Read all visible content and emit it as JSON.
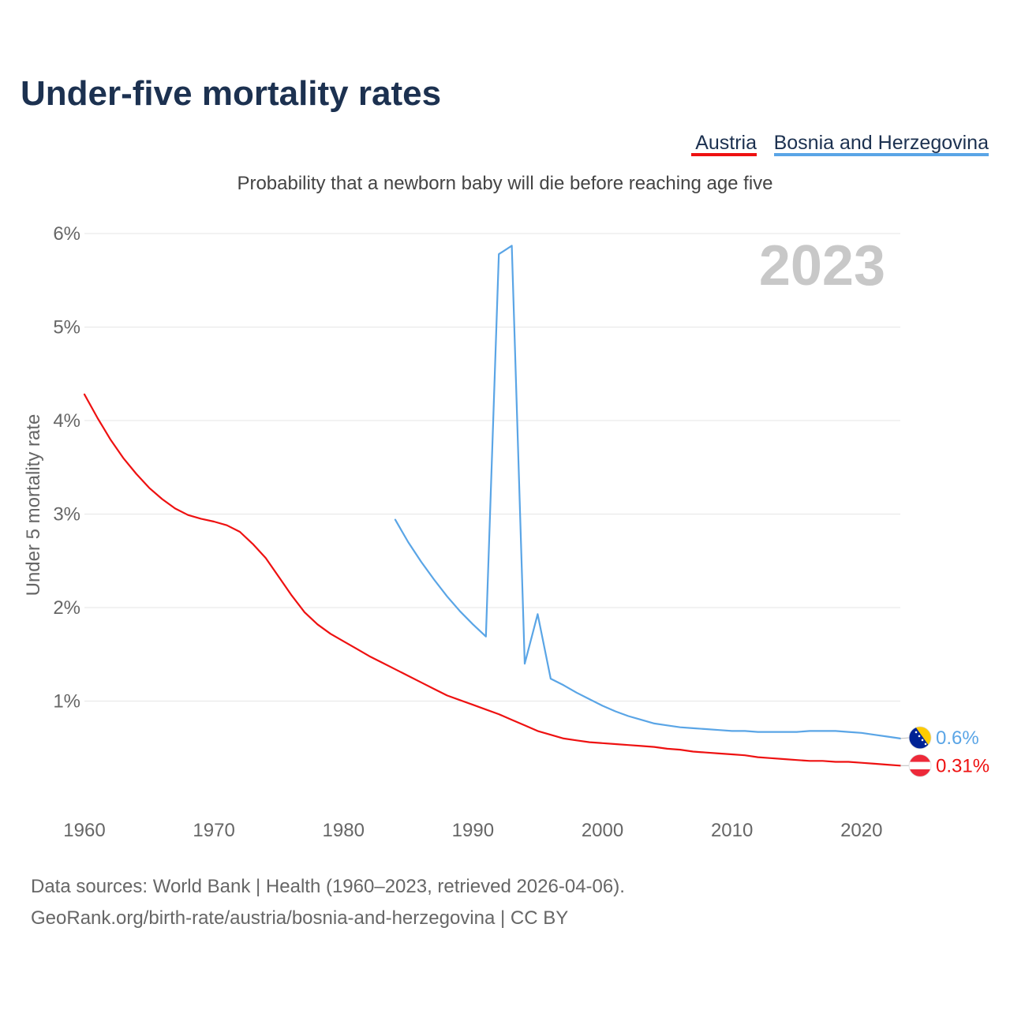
{
  "header": {
    "title": "Under-five mortality rates",
    "subtitle": "Probability that a newborn baby will die before reaching age five",
    "year_watermark": "2023"
  },
  "legend": {
    "austria": "Austria",
    "bosnia": "Bosnia and Herzegovina"
  },
  "footer": {
    "source_line1": "Data sources: World Bank | Health (1960–2023, retrieved 2026-04-06).",
    "source_line2": "GeoRank.org/birth-rate/austria/bosnia-and-herzegovina | CC BY"
  },
  "colors": {
    "austria": "#ee1111",
    "bosnia": "#5aa5e6",
    "title": "#1c3150"
  },
  "icons": {
    "austria_flag": "austria-flag-icon",
    "bosnia_flag": "bosnia-flag-icon"
  },
  "chart_data": {
    "type": "line",
    "title": "Under-five mortality rates",
    "subtitle": "Probability that a newborn baby will die before reaching age five",
    "xlabel": "",
    "ylabel": "Under 5 mortality rate",
    "xlim": [
      1960,
      2023
    ],
    "ylim": [
      0,
      6
    ],
    "x_ticks": [
      1960,
      1970,
      1980,
      1990,
      2000,
      2010,
      2020
    ],
    "y_ticks": [
      1,
      2,
      3,
      4,
      5,
      6
    ],
    "y_tick_labels": [
      "1%",
      "2%",
      "3%",
      "4%",
      "5%",
      "6%"
    ],
    "grid": true,
    "series": [
      {
        "name": "Austria",
        "color": "#ee1111",
        "end_label": "0.31%",
        "x": [
          1960,
          1961,
          1962,
          1963,
          1964,
          1965,
          1966,
          1967,
          1968,
          1969,
          1970,
          1971,
          1972,
          1973,
          1974,
          1975,
          1976,
          1977,
          1978,
          1979,
          1980,
          1981,
          1982,
          1983,
          1984,
          1985,
          1986,
          1987,
          1988,
          1989,
          1990,
          1991,
          1992,
          1993,
          1994,
          1995,
          1996,
          1997,
          1998,
          1999,
          2000,
          2001,
          2002,
          2003,
          2004,
          2005,
          2006,
          2007,
          2008,
          2009,
          2010,
          2011,
          2012,
          2013,
          2014,
          2015,
          2016,
          2017,
          2018,
          2019,
          2020,
          2021,
          2022,
          2023
        ],
        "values": [
          4.28,
          4.03,
          3.8,
          3.6,
          3.43,
          3.28,
          3.16,
          3.06,
          2.99,
          2.95,
          2.92,
          2.88,
          2.81,
          2.68,
          2.53,
          2.33,
          2.13,
          1.95,
          1.82,
          1.72,
          1.64,
          1.56,
          1.48,
          1.41,
          1.34,
          1.27,
          1.2,
          1.13,
          1.06,
          1.01,
          0.96,
          0.91,
          0.86,
          0.8,
          0.74,
          0.68,
          0.64,
          0.6,
          0.58,
          0.56,
          0.55,
          0.54,
          0.53,
          0.52,
          0.51,
          0.49,
          0.48,
          0.46,
          0.45,
          0.44,
          0.43,
          0.42,
          0.4,
          0.39,
          0.38,
          0.37,
          0.36,
          0.36,
          0.35,
          0.35,
          0.34,
          0.33,
          0.32,
          0.31
        ]
      },
      {
        "name": "Bosnia and Herzegovina",
        "color": "#5aa5e6",
        "end_label": "0.6%",
        "x": [
          1984,
          1985,
          1986,
          1987,
          1988,
          1989,
          1990,
          1991,
          1992,
          1993,
          1994,
          1995,
          1996,
          1997,
          1998,
          1999,
          2000,
          2001,
          2002,
          2003,
          2004,
          2005,
          2006,
          2007,
          2008,
          2009,
          2010,
          2011,
          2012,
          2013,
          2014,
          2015,
          2016,
          2017,
          2018,
          2019,
          2020,
          2021,
          2022,
          2023
        ],
        "values": [
          2.94,
          2.7,
          2.49,
          2.3,
          2.12,
          1.96,
          1.82,
          1.69,
          5.78,
          5.87,
          1.4,
          1.93,
          1.24,
          1.17,
          1.09,
          1.02,
          0.95,
          0.89,
          0.84,
          0.8,
          0.76,
          0.74,
          0.72,
          0.71,
          0.7,
          0.69,
          0.68,
          0.68,
          0.67,
          0.67,
          0.67,
          0.67,
          0.68,
          0.68,
          0.68,
          0.67,
          0.66,
          0.64,
          0.62,
          0.6
        ]
      }
    ]
  }
}
